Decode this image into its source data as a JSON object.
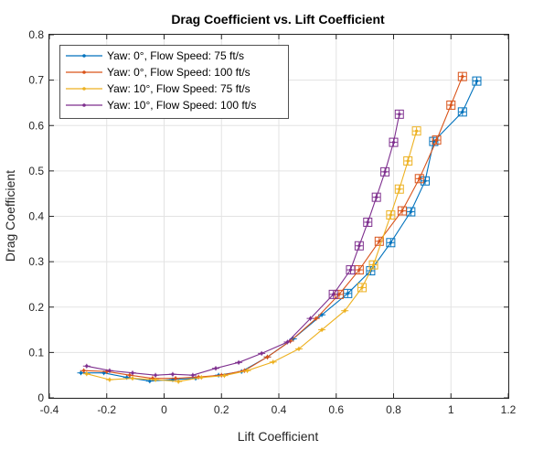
{
  "chart_data": {
    "type": "line",
    "title": "Drag Coefficient vs. Lift Coefficient",
    "xlabel": "Lift Coefficient",
    "ylabel": "Drag Coefficient",
    "xlim": [
      -0.4,
      1.2
    ],
    "ylim": [
      0,
      0.8
    ],
    "xticks": [
      "-0.4",
      "-0.2",
      "0",
      "0.2",
      "0.4",
      "0.6",
      "0.8",
      "1",
      "1.2"
    ],
    "yticks": [
      "0",
      "0.1",
      "0.2",
      "0.3",
      "0.4",
      "0.5",
      "0.6",
      "0.7",
      "0.8"
    ],
    "grid": true,
    "legend_position": "top-left",
    "series": [
      {
        "name": "Yaw: 0°, Flow Speed: 75 ft/s",
        "color": "#0072BD",
        "x": [
          -0.29,
          -0.21,
          -0.13,
          -0.05,
          0.03,
          0.11,
          0.19,
          0.27,
          0.36,
          0.45,
          0.55,
          0.64,
          0.72,
          0.79,
          0.86,
          0.91,
          0.94,
          1.04,
          1.09
        ],
        "y": [
          0.055,
          0.055,
          0.045,
          0.037,
          0.04,
          0.043,
          0.05,
          0.058,
          0.09,
          0.13,
          0.183,
          0.23,
          0.28,
          0.342,
          0.41,
          0.478,
          0.565,
          0.63,
          0.698
        ]
      },
      {
        "name": "Yaw: 0°, Flow Speed: 100 ft/s",
        "color": "#D95319",
        "x": [
          -0.28,
          -0.2,
          -0.12,
          -0.04,
          0.04,
          0.12,
          0.2,
          0.28,
          0.36,
          0.44,
          0.53,
          0.61,
          0.68,
          0.75,
          0.83,
          0.89,
          0.95,
          1.0,
          1.04
        ],
        "y": [
          0.06,
          0.058,
          0.05,
          0.043,
          0.043,
          0.046,
          0.05,
          0.06,
          0.09,
          0.125,
          0.175,
          0.228,
          0.282,
          0.345,
          0.412,
          0.483,
          0.568,
          0.645,
          0.708
        ]
      },
      {
        "name": "Yaw: 10°, Flow Speed: 75 ft/s",
        "color": "#EDB120",
        "x": [
          -0.27,
          -0.19,
          -0.11,
          -0.03,
          0.05,
          0.13,
          0.21,
          0.29,
          0.38,
          0.47,
          0.55,
          0.63,
          0.69,
          0.73,
          0.79,
          0.82,
          0.85,
          0.88
        ],
        "y": [
          0.053,
          0.04,
          0.043,
          0.04,
          0.036,
          0.045,
          0.049,
          0.06,
          0.079,
          0.108,
          0.15,
          0.192,
          0.243,
          0.293,
          0.403,
          0.46,
          0.522,
          0.588
        ]
      },
      {
        "name": "Yaw: 10°, Flow Speed: 100 ft/s",
        "color": "#7E2F8E",
        "x": [
          -0.27,
          -0.19,
          -0.11,
          -0.03,
          0.03,
          0.1,
          0.18,
          0.26,
          0.34,
          0.43,
          0.51,
          0.59,
          0.65,
          0.68,
          0.71,
          0.74,
          0.77,
          0.8,
          0.82
        ],
        "y": [
          0.07,
          0.06,
          0.055,
          0.05,
          0.052,
          0.05,
          0.065,
          0.078,
          0.098,
          0.123,
          0.175,
          0.228,
          0.282,
          0.335,
          0.387,
          0.442,
          0.498,
          0.563,
          0.625
        ]
      }
    ]
  }
}
